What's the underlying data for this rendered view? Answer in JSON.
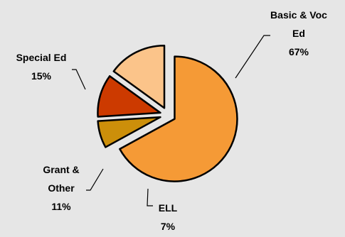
{
  "chart_data": {
    "type": "pie",
    "title": "",
    "exploded": true,
    "legend": "none",
    "start_angle_deg": 0,
    "direction": "clockwise",
    "slices": [
      {
        "label_lines": [
          "Basic & Voc",
          "Ed"
        ],
        "percent_label": "67%",
        "value": 67,
        "color": "#f59a36"
      },
      {
        "label_lines": [
          "ELL"
        ],
        "percent_label": "7%",
        "value": 7,
        "color": "#cc8f0a"
      },
      {
        "label_lines": [
          "Grant &",
          "Other"
        ],
        "percent_label": "11%",
        "value": 11,
        "color": "#cc3a00"
      },
      {
        "label_lines": [
          "Special Ed"
        ],
        "percent_label": "15%",
        "value": 15,
        "color": "#fbc48a"
      }
    ]
  }
}
